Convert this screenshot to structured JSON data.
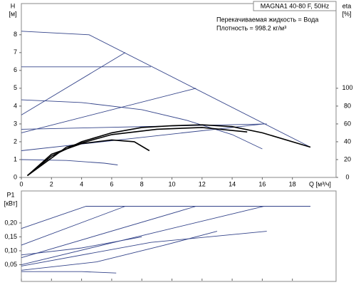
{
  "chart_data": [
    {
      "type": "line",
      "title": "MAGNA1 40-80 F, 50Hz",
      "annotations": [
        "Перекачиваемая жидкость = Вода",
        "Плотность = 998.2 кг/м³"
      ],
      "xlabel": "Q [м³/ч]",
      "ylabel": "H",
      "yunit": "[м]",
      "y2label": "eta",
      "y2unit": "[%]",
      "xlim": [
        0,
        20.9
      ],
      "xticks": [
        0,
        2,
        4,
        6,
        8,
        10,
        12,
        14,
        16,
        18
      ],
      "ylim": [
        0,
        9.75
      ],
      "yticks": [
        0,
        1,
        2,
        3,
        4,
        5,
        6,
        7,
        8
      ],
      "y2lim": [
        0,
        195
      ],
      "y2ticks": [
        0,
        20,
        40,
        60,
        80,
        100
      ],
      "series": [
        {
          "color": "#34448a",
          "x": [
            0,
            4.5,
            19.2
          ],
          "values": [
            8.2,
            8.0,
            1.7
          ]
        },
        {
          "color": "#34448a",
          "x": [
            0,
            8.6
          ],
          "values": [
            6.2,
            6.2
          ]
        },
        {
          "color": "#34448a",
          "x": [
            0,
            6.9
          ],
          "values": [
            3.5,
            7.0
          ]
        },
        {
          "color": "#34448a",
          "x": [
            0,
            11.6
          ],
          "values": [
            2.5,
            5.0
          ]
        },
        {
          "color": "#34448a",
          "x": [
            0,
            16.1
          ],
          "values": [
            1.5,
            3.0
          ]
        },
        {
          "color": "#34448a",
          "x": [
            0,
            4,
            8,
            11,
            14,
            16
          ],
          "values": [
            4.35,
            4.2,
            3.8,
            3.2,
            2.4,
            1.6
          ]
        },
        {
          "color": "#34448a",
          "x": [
            0,
            16.3
          ],
          "values": [
            2.7,
            3.0
          ]
        },
        {
          "color": "#34448a",
          "x": [
            0,
            3,
            5.5,
            6.4
          ],
          "values": [
            1.0,
            0.95,
            0.8,
            0.7
          ]
        },
        {
          "color": "#000000",
          "axis": "y2",
          "x": [
            0.4,
            2,
            4,
            6,
            8,
            10,
            12,
            14,
            16,
            19.2
          ],
          "values": [
            2,
            24,
            40,
            50,
            56,
            58,
            59,
            57,
            50,
            34
          ]
        },
        {
          "color": "#000000",
          "axis": "y2",
          "x": [
            0.4,
            3,
            6,
            9,
            12,
            15
          ],
          "values": [
            2,
            34,
            48,
            54,
            56,
            51
          ]
        },
        {
          "color": "#000000",
          "axis": "y2",
          "x": [
            0.4,
            2,
            4,
            6,
            7.5,
            8.5
          ],
          "values": [
            2,
            26,
            38,
            42,
            40,
            30
          ]
        }
      ]
    },
    {
      "type": "line",
      "ylabel": "P1",
      "yunit": "[кВт]",
      "xlim": [
        0,
        20.9
      ],
      "xticks": [
        0,
        2,
        4,
        6,
        8,
        10,
        12,
        14,
        16,
        18
      ],
      "ylim": [
        0,
        0.315
      ],
      "yticks": [
        {
          "value": 0.05,
          "label": "0,05"
        },
        {
          "value": 0.1,
          "label": "0,10"
        },
        {
          "value": 0.15,
          "label": "0,15"
        },
        {
          "value": 0.2,
          "label": "0,20"
        }
      ],
      "series": [
        {
          "color": "#34448a",
          "x": [
            0,
            4.3,
            19.2
          ],
          "values": [
            0.18,
            0.26,
            0.26
          ]
        },
        {
          "color": "#34448a",
          "x": [
            0,
            6.9
          ],
          "values": [
            0.12,
            0.26
          ]
        },
        {
          "color": "#34448a",
          "x": [
            0,
            11.6
          ],
          "values": [
            0.075,
            0.26
          ]
        },
        {
          "color": "#34448a",
          "x": [
            0,
            16.1
          ],
          "values": [
            0.05,
            0.26
          ]
        },
        {
          "color": "#34448a",
          "x": [
            0,
            8.6,
            16.3
          ],
          "values": [
            0.045,
            0.13,
            0.17
          ]
        },
        {
          "color": "#34448a",
          "x": [
            0,
            4,
            8
          ],
          "values": [
            0.085,
            0.11,
            0.15
          ]
        },
        {
          "color": "#34448a",
          "x": [
            0,
            5,
            9.5,
            13
          ],
          "values": [
            0.03,
            0.06,
            0.12,
            0.17
          ]
        },
        {
          "color": "#34448a",
          "x": [
            0,
            4,
            6.3
          ],
          "values": [
            0.025,
            0.025,
            0.02
          ]
        }
      ]
    }
  ]
}
